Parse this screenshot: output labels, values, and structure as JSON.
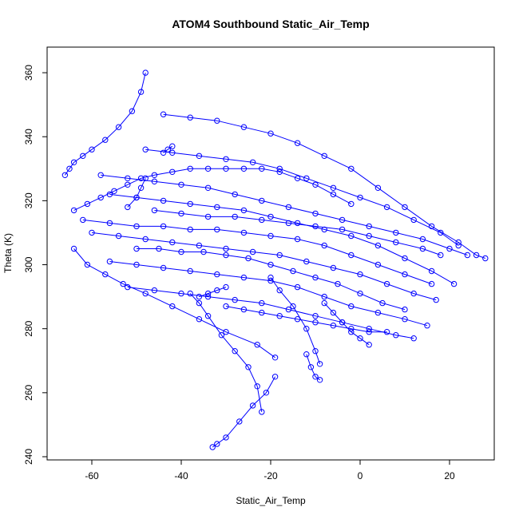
{
  "chart_data": {
    "type": "scatter",
    "title": "ATOM4 Southbound Static_Air_Temp",
    "xlabel": "Static_Air_Temp",
    "ylabel": "Theta (K)",
    "xlim": [
      -70,
      30
    ],
    "ylim": [
      239,
      368
    ],
    "xticks": [
      -60,
      -40,
      -20,
      0,
      20
    ],
    "yticks": [
      240,
      260,
      280,
      300,
      320,
      340,
      360
    ],
    "grid": false,
    "color": "#0000ff",
    "series": [
      {
        "x": [
          -33,
          -32,
          -30,
          -27,
          -24,
          -21,
          -19
        ],
        "y": [
          243,
          244,
          246,
          251,
          256,
          260,
          265
        ]
      },
      {
        "x": [
          -22,
          -23,
          -25,
          -28,
          -31,
          -34,
          -36,
          -38
        ],
        "y": [
          254,
          262,
          268,
          273,
          278,
          284,
          288,
          291
        ]
      },
      {
        "x": [
          -19,
          -23,
          -30,
          -36,
          -42,
          -48,
          -53,
          -57,
          -61,
          -64
        ],
        "y": [
          271,
          275,
          279,
          283,
          287,
          291,
          294,
          297,
          300,
          305
        ]
      },
      {
        "x": [
          -66,
          -65,
          -64,
          -62,
          -60,
          -57,
          -54,
          -51,
          -49,
          -48
        ],
        "y": [
          328,
          330,
          332,
          334,
          336,
          339,
          343,
          348,
          354,
          360
        ]
      },
      {
        "x": [
          -64,
          -61,
          -58,
          -55,
          -52,
          -49,
          -46,
          -42,
          -38,
          -34,
          -30,
          -26,
          -22,
          -18,
          -14,
          -10,
          -6,
          -2
        ],
        "y": [
          317,
          319,
          321,
          323,
          325,
          327,
          328,
          329,
          330,
          330,
          330,
          330,
          330,
          329,
          327,
          325,
          322,
          319
        ]
      },
      {
        "x": [
          -44,
          -38,
          -32,
          -26,
          -20,
          -14,
          -8,
          -2,
          4,
          10,
          16,
          22,
          26,
          28
        ],
        "y": [
          347,
          346,
          345,
          343,
          341,
          338,
          334,
          330,
          324,
          318,
          312,
          307,
          303,
          302
        ]
      },
      {
        "x": [
          -56,
          -50,
          -44,
          -38,
          -32,
          -26,
          -20,
          -14,
          -8,
          -2,
          4,
          10,
          16,
          21
        ],
        "y": [
          322,
          321,
          320,
          319,
          318,
          317,
          315,
          313,
          311,
          309,
          306,
          302,
          298,
          294
        ]
      },
      {
        "x": [
          -60,
          -54,
          -48,
          -42,
          -36,
          -30,
          -24,
          -18,
          -12,
          -6,
          0,
          6,
          12,
          17
        ],
        "y": [
          310,
          309,
          308,
          307,
          306,
          305,
          304,
          303,
          301,
          299,
          297,
          294,
          291,
          289
        ]
      },
      {
        "x": [
          -56,
          -50,
          -44,
          -38,
          -32,
          -26,
          -20,
          -14,
          -8,
          -2,
          4,
          10,
          15
        ],
        "y": [
          301,
          300,
          299,
          298,
          297,
          296,
          295,
          293,
          290,
          287,
          285,
          283,
          281
        ]
      },
      {
        "x": [
          -52,
          -46,
          -40,
          -34,
          -28,
          -22,
          -16,
          -10,
          -4,
          2,
          8,
          12
        ],
        "y": [
          293,
          292,
          291,
          290,
          289,
          288,
          286,
          284,
          282,
          280,
          278,
          277
        ]
      },
      {
        "x": [
          -30,
          -26,
          -22,
          -18,
          -14,
          -10,
          -6,
          -2,
          2,
          6
        ],
        "y": [
          287,
          286,
          285,
          284,
          283,
          282,
          281,
          280,
          279,
          279
        ]
      },
      {
        "x": [
          -58,
          -52,
          -46,
          -40,
          -34,
          -28,
          -22,
          -16,
          -10,
          -4,
          2,
          8,
          14,
          20,
          24
        ],
        "y": [
          328,
          327,
          326,
          325,
          324,
          322,
          320,
          318,
          316,
          314,
          312,
          310,
          308,
          305,
          303
        ]
      },
      {
        "x": [
          -48,
          -42,
          -36,
          -30,
          -24,
          -18,
          -12,
          -6,
          0,
          6,
          12,
          18,
          22
        ],
        "y": [
          336,
          335,
          334,
          333,
          332,
          330,
          327,
          324,
          321,
          318,
          314,
          310,
          306
        ]
      },
      {
        "x": [
          -62,
          -56,
          -50,
          -44,
          -38,
          -32,
          -26,
          -20,
          -14,
          -8,
          -2,
          4,
          10,
          16
        ],
        "y": [
          314,
          313,
          312,
          312,
          311,
          311,
          310,
          309,
          308,
          306,
          303,
          300,
          297,
          294
        ]
      },
      {
        "x": [
          -50,
          -45,
          -40,
          -35,
          -30,
          -25,
          -20,
          -15,
          -10,
          -5,
          0,
          5,
          10
        ],
        "y": [
          305,
          305,
          304,
          304,
          303,
          302,
          300,
          298,
          296,
          294,
          291,
          288,
          286
        ]
      },
      {
        "x": [
          -20,
          -18,
          -15,
          -12,
          -10,
          -9
        ],
        "y": [
          296,
          292,
          287,
          280,
          273,
          269
        ]
      },
      {
        "x": [
          -12,
          -11,
          -10,
          -9
        ],
        "y": [
          272,
          268,
          265,
          264
        ]
      },
      {
        "x": [
          -8,
          -6,
          -4,
          -2,
          0,
          2
        ],
        "y": [
          288,
          285,
          282,
          279,
          277,
          275
        ]
      },
      {
        "x": [
          -46,
          -40,
          -34,
          -28,
          -22,
          -16,
          -10,
          -4,
          2,
          8,
          14,
          18
        ],
        "y": [
          317,
          316,
          315,
          315,
          314,
          313,
          312,
          311,
          309,
          307,
          305,
          303
        ]
      },
      {
        "x": [
          -52,
          -50,
          -49,
          -48
        ],
        "y": [
          318,
          321,
          324,
          327
        ]
      },
      {
        "x": [
          -44,
          -43,
          -42
        ],
        "y": [
          335,
          336,
          337
        ]
      },
      {
        "x": [
          -36,
          -34,
          -32,
          -30
        ],
        "y": [
          290,
          291,
          292,
          293
        ]
      }
    ]
  }
}
